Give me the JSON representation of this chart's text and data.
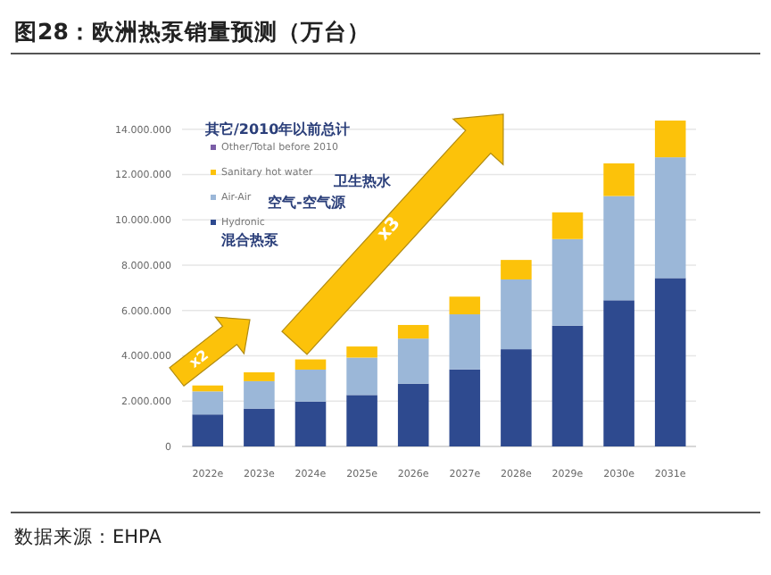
{
  "chart_data": {
    "type": "bar",
    "stacked": true,
    "title": "图28：欧洲热泵销量预测（万台）",
    "categories": [
      "2022e",
      "2023e",
      "2024e",
      "2025e",
      "2026e",
      "2027e",
      "2028e",
      "2029e",
      "2030e",
      "2031e"
    ],
    "series": [
      {
        "name": "Hydronic",
        "color": "#2e4a8f",
        "values": [
          1410000,
          1670000,
          1980000,
          2270000,
          2770000,
          3400000,
          4290000,
          5330000,
          6450000,
          7430000
        ]
      },
      {
        "name": "Air-Air",
        "color": "#9bb7d8",
        "values": [
          1020000,
          1210000,
          1410000,
          1650000,
          1990000,
          2430000,
          3080000,
          3820000,
          4600000,
          5330000
        ]
      },
      {
        "name": "Sanitary hot water",
        "color": "#fcc20a",
        "values": [
          260000,
          390000,
          450000,
          490000,
          600000,
          780000,
          860000,
          1180000,
          1440000,
          1620000
        ]
      },
      {
        "name": "Other/Total before 2010",
        "color": "#7b5ea7",
        "values": [
          null,
          null,
          null,
          null,
          null,
          null,
          null,
          null,
          null,
          null
        ]
      }
    ],
    "ylim": [
      0,
      14500000
    ],
    "yticks": [
      0,
      {
        "value": 2000000,
        "label": "2.000.000"
      },
      {
        "value": 4000000,
        "label": "4.000.000"
      },
      {
        "value": 6000000,
        "label": "6.000.000"
      },
      {
        "value": 8000000,
        "label": "8.000.000"
      },
      {
        "value": 10000000,
        "label": "10.000.000"
      },
      {
        "value": 12000000,
        "label": "12.000.000"
      },
      {
        "value": 14000000,
        "label": "14.000.000"
      }
    ],
    "grid": "y",
    "legend": "top left",
    "annotations": [
      "混合热泵",
      "空气-空气源",
      "卫生热水",
      "其它/2010年以前总计",
      "x2",
      "x3",
      "数据来源：EHPA"
    ]
  }
}
